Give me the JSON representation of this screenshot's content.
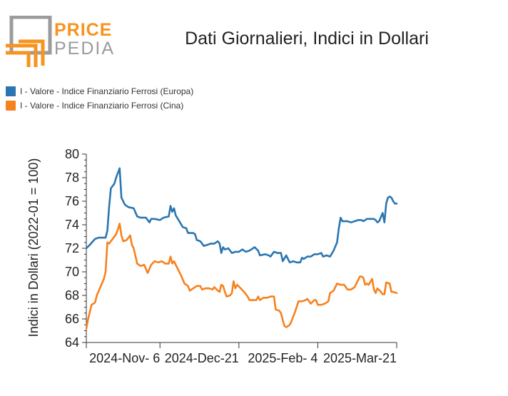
{
  "logo": {
    "word1": "PRICE",
    "word2": "PEDIA"
  },
  "title": "Dati Giornalieri, Indici in Dollari",
  "colors": {
    "blue": "#2b76b0",
    "orange": "#f7811e",
    "logo_orange": "#f7931e",
    "logo_gray": "#9b9b9b"
  },
  "chart_data": {
    "type": "line",
    "ylabel": "Indici in Dollari (2022-01 = 100)",
    "xlabel": "",
    "ylim": [
      64,
      80
    ],
    "yticks": [
      64,
      66,
      68,
      70,
      72,
      74,
      76,
      78,
      80
    ],
    "xlim": [
      "2024-09-25",
      "2025-03-21"
    ],
    "xticks": [
      "2024-11-06",
      "2024-12-21",
      "2025-02-04",
      "2025-03-21"
    ],
    "xtick_labels": [
      "2024-Nov- 6",
      "2024-Dec-21",
      "2025-Feb- 4",
      "2025-Mar-21"
    ],
    "grid": false,
    "legend_position": "top-left",
    "series": [
      {
        "name": "I - Valore - Indice Finanziario Ferrosi (Europa)",
        "color": "#2b76b0",
        "points": [
          [
            "2024-09-25",
            72.0
          ],
          [
            "2024-09-27",
            72.3
          ],
          [
            "2024-09-30",
            72.8
          ],
          [
            "2024-10-02",
            72.9
          ],
          [
            "2024-10-04",
            72.9
          ],
          [
            "2024-10-06",
            72.9
          ],
          [
            "2024-10-07",
            73.5
          ],
          [
            "2024-10-08",
            75.5
          ],
          [
            "2024-10-09",
            77.1
          ],
          [
            "2024-10-10",
            77.3
          ],
          [
            "2024-10-11",
            77.5
          ],
          [
            "2024-10-12",
            78.0
          ],
          [
            "2024-10-13",
            78.4
          ],
          [
            "2024-10-14",
            78.8
          ],
          [
            "2024-10-15",
            76.3
          ],
          [
            "2024-10-17",
            75.7
          ],
          [
            "2024-10-19",
            75.5
          ],
          [
            "2024-10-22",
            75.4
          ],
          [
            "2024-10-24",
            74.7
          ],
          [
            "2024-10-26",
            74.6
          ],
          [
            "2024-10-29",
            74.6
          ],
          [
            "2024-10-31",
            74.2
          ],
          [
            "2024-11-01",
            74.5
          ],
          [
            "2024-11-03",
            74.5
          ],
          [
            "2024-11-06",
            74.4
          ],
          [
            "2024-11-08",
            74.6
          ],
          [
            "2024-11-11",
            74.7
          ],
          [
            "2024-11-12",
            75.6
          ],
          [
            "2024-11-13",
            75.1
          ],
          [
            "2024-11-14",
            75.4
          ],
          [
            "2024-11-15",
            74.8
          ],
          [
            "2024-11-17",
            74.3
          ],
          [
            "2024-11-19",
            73.8
          ],
          [
            "2024-11-21",
            73.7
          ],
          [
            "2024-11-22",
            73.3
          ],
          [
            "2024-11-25",
            73.3
          ],
          [
            "2024-11-26",
            73.2
          ],
          [
            "2024-11-27",
            72.7
          ],
          [
            "2024-11-29",
            72.6
          ],
          [
            "2024-12-01",
            72.2
          ],
          [
            "2024-12-03",
            72.3
          ],
          [
            "2024-12-05",
            72.4
          ],
          [
            "2024-12-07",
            72.4
          ],
          [
            "2024-12-09",
            72.6
          ],
          [
            "2024-12-10",
            72.4
          ],
          [
            "2024-12-11",
            71.6
          ],
          [
            "2024-12-12",
            72.1
          ],
          [
            "2024-12-13",
            71.9
          ],
          [
            "2024-12-15",
            72.0
          ],
          [
            "2024-12-17",
            71.6
          ],
          [
            "2024-12-19",
            71.7
          ],
          [
            "2024-12-21",
            71.7
          ],
          [
            "2024-12-23",
            71.9
          ],
          [
            "2024-12-25",
            71.7
          ],
          [
            "2024-12-27",
            71.8
          ],
          [
            "2024-12-30",
            72.1
          ],
          [
            "2025-01-01",
            71.8
          ],
          [
            "2025-01-02",
            71.4
          ],
          [
            "2025-01-05",
            71.5
          ],
          [
            "2025-01-07",
            71.4
          ],
          [
            "2025-01-08",
            71.3
          ],
          [
            "2025-01-10",
            71.7
          ],
          [
            "2025-01-12",
            71.6
          ],
          [
            "2025-01-14",
            71.6
          ],
          [
            "2025-01-15",
            70.9
          ],
          [
            "2025-01-17",
            71.4
          ],
          [
            "2025-01-18",
            71.1
          ],
          [
            "2025-01-19",
            70.8
          ],
          [
            "2025-01-21",
            70.9
          ],
          [
            "2025-01-23",
            70.8
          ],
          [
            "2025-01-25",
            70.8
          ],
          [
            "2025-01-26",
            71.2
          ],
          [
            "2025-01-27",
            71.1
          ],
          [
            "2025-01-29",
            71.3
          ],
          [
            "2025-01-31",
            71.3
          ],
          [
            "2025-02-02",
            71.5
          ],
          [
            "2025-02-04",
            71.5
          ],
          [
            "2025-02-06",
            71.6
          ],
          [
            "2025-02-07",
            71.3
          ],
          [
            "2025-02-09",
            71.4
          ],
          [
            "2025-02-11",
            71.3
          ],
          [
            "2025-02-13",
            71.8
          ],
          [
            "2025-02-15",
            72.5
          ],
          [
            "2025-02-16",
            73.7
          ],
          [
            "2025-02-17",
            74.6
          ],
          [
            "2025-02-18",
            74.3
          ],
          [
            "2025-02-19",
            74.3
          ],
          [
            "2025-02-21",
            74.3
          ],
          [
            "2025-02-23",
            74.2
          ],
          [
            "2025-02-25",
            74.3
          ],
          [
            "2025-02-27",
            74.4
          ],
          [
            "2025-03-01",
            74.4
          ],
          [
            "2025-03-02",
            74.3
          ],
          [
            "2025-03-04",
            74.5
          ],
          [
            "2025-03-06",
            74.5
          ],
          [
            "2025-03-08",
            74.5
          ],
          [
            "2025-03-09",
            74.4
          ],
          [
            "2025-03-10",
            74.2
          ],
          [
            "2025-03-11",
            74.3
          ],
          [
            "2025-03-13",
            75.0
          ],
          [
            "2025-03-14",
            74.2
          ],
          [
            "2025-03-15",
            75.8
          ],
          [
            "2025-03-16",
            76.3
          ],
          [
            "2025-03-17",
            76.4
          ],
          [
            "2025-03-18",
            76.3
          ],
          [
            "2025-03-19",
            76.0
          ],
          [
            "2025-03-20",
            75.8
          ],
          [
            "2025-03-21",
            75.8
          ]
        ]
      },
      {
        "name": "I - Valore - Indice Finanziario Ferrosi (Cina)",
        "color": "#f7811e",
        "points": [
          [
            "2024-09-25",
            65.2
          ],
          [
            "2024-09-26",
            66.0
          ],
          [
            "2024-09-28",
            67.2
          ],
          [
            "2024-09-30",
            67.4
          ],
          [
            "2024-10-01",
            68.0
          ],
          [
            "2024-10-03",
            68.7
          ],
          [
            "2024-10-05",
            69.4
          ],
          [
            "2024-10-06",
            70.0
          ],
          [
            "2024-10-07",
            72.5
          ],
          [
            "2024-10-08",
            72.4
          ],
          [
            "2024-10-10",
            72.8
          ],
          [
            "2024-10-12",
            73.2
          ],
          [
            "2024-10-13",
            73.6
          ],
          [
            "2024-10-14",
            74.1
          ],
          [
            "2024-10-15",
            73.1
          ],
          [
            "2024-10-16",
            72.6
          ],
          [
            "2024-10-18",
            72.7
          ],
          [
            "2024-10-20",
            73.1
          ],
          [
            "2024-10-21",
            72.3
          ],
          [
            "2024-10-22",
            72.0
          ],
          [
            "2024-10-24",
            70.7
          ],
          [
            "2024-10-26",
            70.5
          ],
          [
            "2024-10-28",
            70.6
          ],
          [
            "2024-10-30",
            69.9
          ],
          [
            "2024-11-01",
            70.6
          ],
          [
            "2024-11-03",
            70.9
          ],
          [
            "2024-11-05",
            70.8
          ],
          [
            "2024-11-07",
            70.9
          ],
          [
            "2024-11-09",
            70.7
          ],
          [
            "2024-11-11",
            70.7
          ],
          [
            "2024-11-12",
            71.3
          ],
          [
            "2024-11-13",
            70.7
          ],
          [
            "2024-11-14",
            70.9
          ],
          [
            "2024-11-16",
            70.3
          ],
          [
            "2024-11-18",
            69.7
          ],
          [
            "2024-11-20",
            69.0
          ],
          [
            "2024-11-22",
            68.8
          ],
          [
            "2024-11-23",
            68.4
          ],
          [
            "2024-11-25",
            68.6
          ],
          [
            "2024-11-27",
            68.8
          ],
          [
            "2024-11-29",
            68.8
          ],
          [
            "2024-11-30",
            68.5
          ],
          [
            "2024-12-02",
            68.6
          ],
          [
            "2024-12-04",
            68.6
          ],
          [
            "2024-12-06",
            68.5
          ],
          [
            "2024-12-07",
            68.7
          ],
          [
            "2024-12-09",
            68.4
          ],
          [
            "2024-12-10",
            68.3
          ],
          [
            "2024-12-11",
            68.9
          ],
          [
            "2024-12-12",
            68.8
          ],
          [
            "2024-12-13",
            68.3
          ],
          [
            "2024-12-14",
            67.9
          ],
          [
            "2024-12-16",
            68.0
          ],
          [
            "2024-12-17",
            68.2
          ],
          [
            "2024-12-18",
            69.2
          ],
          [
            "2024-12-19",
            68.6
          ],
          [
            "2024-12-20",
            68.9
          ],
          [
            "2024-12-22",
            68.6
          ],
          [
            "2024-12-24",
            68.3
          ],
          [
            "2024-12-26",
            67.9
          ],
          [
            "2024-12-27",
            67.6
          ],
          [
            "2024-12-29",
            67.6
          ],
          [
            "2024-12-31",
            67.6
          ],
          [
            "2025-01-01",
            67.9
          ],
          [
            "2025-01-02",
            67.6
          ],
          [
            "2025-01-04",
            67.8
          ],
          [
            "2025-01-06",
            67.8
          ],
          [
            "2025-01-08",
            67.9
          ],
          [
            "2025-01-10",
            67.9
          ],
          [
            "2025-01-11",
            66.8
          ],
          [
            "2025-01-13",
            66.7
          ],
          [
            "2025-01-14",
            66.5
          ],
          [
            "2025-01-15",
            65.9
          ],
          [
            "2025-01-16",
            65.4
          ],
          [
            "2025-01-17",
            65.3
          ],
          [
            "2025-01-19",
            65.5
          ],
          [
            "2025-01-20",
            65.8
          ],
          [
            "2025-01-22",
            66.6
          ],
          [
            "2025-01-24",
            67.5
          ],
          [
            "2025-01-26",
            67.5
          ],
          [
            "2025-01-28",
            67.6
          ],
          [
            "2025-01-29",
            67.7
          ],
          [
            "2025-01-31",
            67.3
          ],
          [
            "2025-02-02",
            67.6
          ],
          [
            "2025-02-03",
            67.6
          ],
          [
            "2025-02-04",
            67.2
          ],
          [
            "2025-02-06",
            67.2
          ],
          [
            "2025-02-08",
            67.3
          ],
          [
            "2025-02-10",
            67.5
          ],
          [
            "2025-02-11",
            68.2
          ],
          [
            "2025-02-13",
            68.4
          ],
          [
            "2025-02-15",
            69.0
          ],
          [
            "2025-02-17",
            68.9
          ],
          [
            "2025-02-19",
            68.9
          ],
          [
            "2025-02-21",
            68.5
          ],
          [
            "2025-02-23",
            68.5
          ],
          [
            "2025-02-25",
            68.7
          ],
          [
            "2025-02-26",
            69.0
          ],
          [
            "2025-02-28",
            69.6
          ],
          [
            "2025-03-01",
            69.6
          ],
          [
            "2025-03-02",
            69.5
          ],
          [
            "2025-03-03",
            68.9
          ],
          [
            "2025-03-04",
            69.0
          ],
          [
            "2025-03-05",
            68.9
          ],
          [
            "2025-03-07",
            69.4
          ],
          [
            "2025-03-08",
            68.5
          ],
          [
            "2025-03-09",
            68.2
          ],
          [
            "2025-03-10",
            68.6
          ],
          [
            "2025-03-12",
            68.3
          ],
          [
            "2025-03-13",
            68.1
          ],
          [
            "2025-03-14",
            68.1
          ],
          [
            "2025-03-15",
            69.1
          ],
          [
            "2025-03-17",
            69.0
          ],
          [
            "2025-03-18",
            68.3
          ],
          [
            "2025-03-19",
            68.3
          ],
          [
            "2025-03-21",
            68.2
          ]
        ]
      }
    ]
  }
}
